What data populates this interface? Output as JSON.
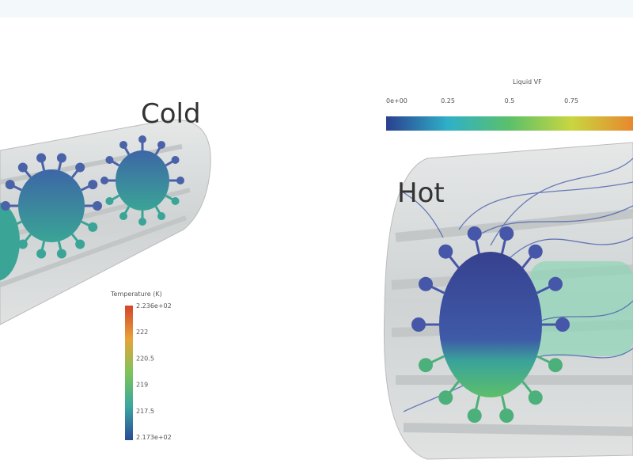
{
  "panels": [
    {
      "label": "Cold",
      "colorbar": {
        "title": "Temperature (K)",
        "labels": [
          "2.236e+02",
          "222",
          "220.5",
          "219",
          "217.5",
          "2.173e+02"
        ]
      }
    },
    {
      "label": "Hot",
      "colorbar": {
        "title": "Liquid VF",
        "labels": [
          "0e+00",
          "0.25",
          "0.5",
          "0.75"
        ]
      }
    }
  ]
}
